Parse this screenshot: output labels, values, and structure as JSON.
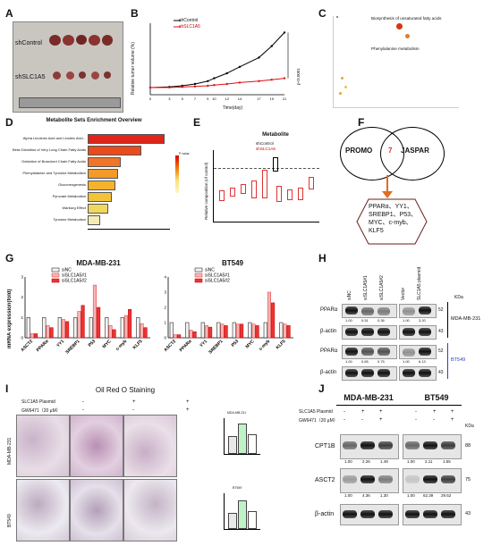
{
  "panels": {
    "A": {
      "label": "A",
      "group1": "shControl",
      "group2": "shSLC1A5"
    },
    "B": {
      "label": "B",
      "ylabel": "Relative tumor volume (%)",
      "xlabel": "Time(day)",
      "legend": [
        "shControl",
        "shSLC1A5"
      ],
      "pvalue": "p<0.0001",
      "xticks": [
        "0",
        "3",
        "5",
        "7",
        "9",
        "10",
        "12",
        "14",
        "17",
        "19",
        "21"
      ]
    },
    "C": {
      "label": "C",
      "ann1": "Biosynthesis of unsaturated fatty acids",
      "ann2": "Phenylalanine metabolism"
    },
    "D": {
      "label": "D",
      "title": "Metabolite Sets Enrichment Overview",
      "items": [
        "Alpha Linolenic Acid and Linoleic Acid...",
        "Beta Oxidation of Very Long Chain Fatty Acids",
        "Oxidation of Branched Chain Fatty Acids",
        "Phenylalanine and Tyrosine Metabolism",
        "Gluconeogenesis",
        "Pyruvate Metabolism",
        "Warburg Effect",
        "Tyrosine Metabolism"
      ],
      "legend_title": "P value"
    },
    "E": {
      "label": "E",
      "title": "Metabolite",
      "ylabel": "Relative composition (of control)",
      "legend": [
        "shControl",
        "shSLC1A5"
      ]
    },
    "F": {
      "label": "F",
      "left": "PROMO",
      "right": "JASPAR",
      "overlap": "7",
      "result_lines": [
        "PPARα、YY1、",
        "SREBP1、P53、",
        "MYC、c-myb、",
        "KLF5"
      ]
    },
    "G": {
      "label": "G",
      "ylabel": "mRNA expression(fold)",
      "charts": [
        {
          "title": "MDA-MB-231"
        },
        {
          "title": "BT549"
        }
      ],
      "legend": [
        "siNC",
        "siSLC1A5#1",
        "siSLC1A5#2"
      ],
      "genes": [
        "ASCT2",
        "PPARα",
        "YY1",
        "SREBP1",
        "P53",
        "MYC",
        "c-myb",
        "KLF5"
      ]
    },
    "H": {
      "label": "H",
      "lanes": [
        "siNC",
        "siSLC1A5#1",
        "siSLC1A5#2",
        "Vector",
        "SLC1A5 plasmid"
      ],
      "kda_label": "KDa",
      "cell1": "MDA-MB-231",
      "cell2": "BT549",
      "rows": [
        {
          "name": "PPARα",
          "kda": "52",
          "values": [
            "1.00",
            "0.51",
            "0.36",
            "1.00",
            "3.20"
          ]
        },
        {
          "name": "β-actin",
          "kda": "43",
          "values": []
        },
        {
          "name": "PPARα",
          "kda": "52",
          "values": [
            "1.00",
            "0.65",
            "0.75",
            "1.00",
            "6.13"
          ]
        },
        {
          "name": "β-actin",
          "kda": "43",
          "values": []
        }
      ]
    },
    "I": {
      "label": "I",
      "title": "Oil Red O Staining",
      "row1_label": "SLC1A5 Plasmid",
      "row2_label": "GW6471（20 μM）",
      "row1_signs": [
        "-",
        "+",
        "+"
      ],
      "row2_signs": [
        "-",
        "-",
        "+"
      ],
      "cells": [
        "MDA-MB-231",
        "BT549"
      ]
    },
    "J": {
      "label": "J",
      "cell1": "MDA-MB-231",
      "cell2": "BT549",
      "row1_label": "SLC1A5 Plasmid",
      "row2_label": "GW6471（20 μM）",
      "row1_signs": [
        "-",
        "+",
        "+",
        "-",
        "+",
        "+"
      ],
      "row2_signs": [
        "-",
        "-",
        "+",
        "-",
        "-",
        "+"
      ],
      "kda_label": "KDa",
      "rows": [
        {
          "name": "CPT1B",
          "kda": "88",
          "values": [
            "1.00",
            "2.26",
            "1.49",
            "1.00",
            "2.11",
            "1.55"
          ]
        },
        {
          "name": "ASCT2",
          "kda": "75",
          "values": [
            "1.00",
            "4.36",
            "1.30",
            "1.00",
            "62.39",
            "29.52"
          ]
        },
        {
          "name": "β-actin",
          "kda": "43",
          "values": []
        }
      ]
    }
  },
  "chart_data": [
    {
      "type": "line",
      "panel": "B",
      "x": [
        0,
        3,
        5,
        7,
        9,
        10,
        12,
        14,
        17,
        19,
        21
      ],
      "series": [
        {
          "name": "shControl",
          "values": [
            100,
            110,
            125,
            150,
            190,
            230,
            300,
            390,
            520,
            680,
            870
          ]
        },
        {
          "name": "shSLC1A5",
          "values": [
            100,
            102,
            108,
            115,
            125,
            135,
            150,
            170,
            190,
            210,
            230
          ]
        }
      ],
      "ylim": [
        0,
        1000
      ]
    },
    {
      "type": "bar",
      "panel": "D",
      "categories": [
        "Alpha Linolenic Acid and Linoleic Acid...",
        "Beta Oxidation of Very Long Chain Fatty Acids",
        "Oxidation of Branched Chain Fatty Acids",
        "Phenylalanine and Tyrosine Metabolism",
        "Gluconeogenesis",
        "Pyruvate Metabolism",
        "Warburg Effect",
        "Tyrosine Metabolism"
      ],
      "values": [
        1.1,
        0.75,
        0.45,
        0.42,
        0.38,
        0.32,
        0.28,
        0.15
      ],
      "xlim": [
        0,
        1.2
      ]
    },
    {
      "type": "bar",
      "panel": "G-MDA-MB-231",
      "categories": [
        "ASCT2",
        "PPARα",
        "YY1",
        "SREBP1",
        "P53",
        "MYC",
        "c-myb",
        "KLF5"
      ],
      "series": [
        {
          "name": "siNC",
          "values": [
            1,
            1,
            1,
            1,
            1,
            1,
            1,
            1
          ]
        },
        {
          "name": "siSLC1A5#1",
          "values": [
            0.2,
            0.6,
            0.9,
            1.3,
            2.6,
            0.6,
            1.1,
            0.7
          ]
        },
        {
          "name": "siSLC1A5#2",
          "values": [
            0.2,
            0.5,
            0.8,
            1.6,
            1.5,
            0.4,
            1.4,
            0.5
          ]
        }
      ],
      "ylim": [
        0,
        3
      ]
    },
    {
      "type": "bar",
      "panel": "G-BT549",
      "categories": [
        "ASCT2",
        "PPARα",
        "YY1",
        "SREBP1",
        "P53",
        "MYC",
        "c-myb",
        "KLF5"
      ],
      "series": [
        {
          "name": "siNC",
          "values": [
            1,
            1,
            1,
            1,
            1,
            1,
            1,
            1
          ]
        },
        {
          "name": "siSLC1A5#1",
          "values": [
            0.2,
            0.5,
            0.8,
            0.9,
            0.9,
            0.9,
            3.0,
            0.9
          ]
        },
        {
          "name": "siSLC1A5#2",
          "values": [
            0.2,
            0.4,
            0.7,
            0.8,
            0.9,
            0.8,
            2.3,
            0.8
          ]
        }
      ],
      "ylim": [
        0,
        4
      ]
    }
  ]
}
